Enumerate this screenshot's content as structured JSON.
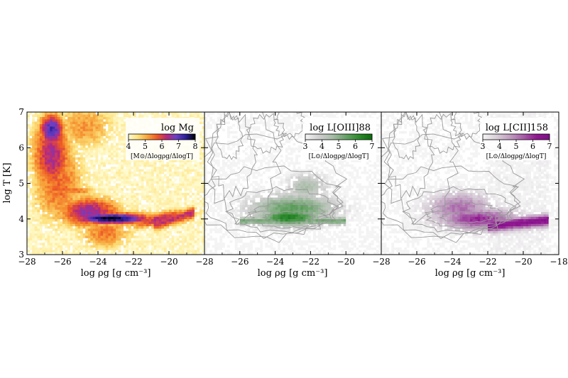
{
  "chart_data": [
    {
      "type": "heatmap",
      "panel": "left",
      "xlabel": "log ρg [g cm⁻³]",
      "ylabel": "log T [K]",
      "xlim": [
        -28,
        -18
      ],
      "ylim": [
        3,
        7
      ],
      "xticks": [
        "−28",
        "−26",
        "−24",
        "−22",
        "−20"
      ],
      "yticks": [
        "3",
        "4",
        "5",
        "6",
        "7"
      ],
      "colorbar": {
        "title": "log Mg",
        "units": "[M⊙/Δlogρg/ΔlogT]",
        "range": [
          4,
          8
        ],
        "ticks": [
          "4",
          "5",
          "6",
          "7",
          "8"
        ],
        "colors": [
          "#fffbd0",
          "#fde07a",
          "#f7a33a",
          "#ee5a23",
          "#b8287a",
          "#6b3fc4",
          "#2c1f9a",
          "#000000"
        ],
        "location": "top-right"
      },
      "features": [
        {
          "description": "hot diffuse gas blob",
          "x": -26.6,
          "y": 6.5,
          "value": 7.2
        },
        {
          "description": "dense cool ridge",
          "x_range": [
            -25,
            -21
          ],
          "y": 4.0,
          "value": 8.0
        },
        {
          "description": "tail to high density",
          "x_range": [
            -21,
            -18.6
          ],
          "y_range": [
            3.8,
            4.3
          ],
          "value": 6.5
        }
      ]
    },
    {
      "type": "heatmap",
      "panel": "middle",
      "xlabel": "log ρg [g cm⁻³]",
      "xlim": [
        -28,
        -18
      ],
      "ylim": [
        3,
        7
      ],
      "xticks": [
        "−28",
        "−26",
        "−24",
        "−22",
        "−20"
      ],
      "overlay": "gray contours of gas mass distribution",
      "colorbar": {
        "title": "log L[OIII]88",
        "units": "[L⊙/Δlogρg/ΔlogT]",
        "range": [
          3,
          7
        ],
        "ticks": [
          "3",
          "4",
          "5",
          "6",
          "7"
        ],
        "colors": [
          "#f4f4f4",
          "#cfcfcf",
          "#a9bca9",
          "#6aa36a",
          "#2e8b2e",
          "#0b6b0b"
        ],
        "location": "top-right"
      },
      "features": [
        {
          "description": "emission concentrated",
          "x_range": [
            -25,
            -20.5
          ],
          "y_range": [
            3.8,
            4.6
          ],
          "value": 6.0
        }
      ]
    },
    {
      "type": "heatmap",
      "panel": "right",
      "xlabel": "log ρg [g cm⁻³]",
      "xlim": [
        -28,
        -18
      ],
      "ylim": [
        3,
        7
      ],
      "xticks": [
        "−28",
        "−26",
        "−24",
        "−22",
        "−20",
        "−18"
      ],
      "overlay": "gray contours of gas mass distribution",
      "colorbar": {
        "title": "log L[CII]158",
        "units": "[L⊙/Δlogρg/ΔlogT]",
        "range": [
          3,
          7
        ],
        "ticks": [
          "3",
          "4",
          "5",
          "6",
          "7"
        ],
        "colors": [
          "#f4f4f4",
          "#d8d0d8",
          "#c0a0c0",
          "#a860a8",
          "#921892",
          "#7d0f86"
        ],
        "location": "top-right"
      },
      "features": [
        {
          "description": "emission band extending to high density",
          "x_range": [
            -25,
            -18.6
          ],
          "y_range": [
            3.8,
            4.5
          ],
          "value": 6.5
        }
      ]
    }
  ]
}
